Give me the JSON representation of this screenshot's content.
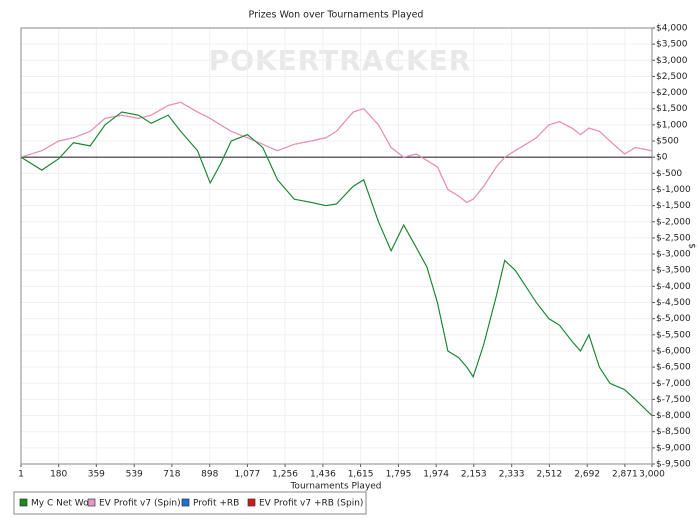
{
  "chart_data": {
    "type": "line",
    "title": "Prizes Won over Tournaments Played",
    "watermark": "POKERTRACKER",
    "x_label": "Tournaments Played",
    "y_label": "$",
    "x": [
      1,
      100,
      180,
      250,
      330,
      400,
      480,
      560,
      620,
      700,
      760,
      840,
      900,
      950,
      1000,
      1077,
      1150,
      1220,
      1300,
      1380,
      1450,
      1500,
      1580,
      1630,
      1700,
      1760,
      1820,
      1880,
      1930,
      1980,
      2030,
      2080,
      2120,
      2150,
      2200,
      2260,
      2300,
      2350,
      2400,
      2450,
      2510,
      2560,
      2620,
      2660,
      2700,
      2750,
      2800,
      2870,
      2920,
      3000
    ],
    "series": [
      {
        "name": "My C Net Won",
        "color": "#1a8a1a",
        "values": [
          0,
          -400,
          -50,
          450,
          350,
          1000,
          1400,
          1300,
          1050,
          1300,
          800,
          200,
          -800,
          -200,
          500,
          700,
          300,
          -700,
          -1300,
          -1400,
          -1500,
          -1450,
          -900,
          -700,
          -2000,
          -2900,
          -2100,
          -2800,
          -3400,
          -4500,
          -6000,
          -6200,
          -6500,
          -6800,
          -5800,
          -4300,
          -3200,
          -3500,
          -4000,
          -4500,
          -5000,
          -5200,
          -5700,
          -6000,
          -5500,
          -6500,
          -7000,
          -7200,
          -7500,
          -8000
        ]
      },
      {
        "name": "EV Profit v7 (Spin)",
        "color": "#e896c8",
        "values": [
          0,
          200,
          500,
          600,
          800,
          1200,
          1300,
          1200,
          1300,
          1600,
          1700,
          1400,
          1200,
          1000,
          800,
          600,
          400,
          200,
          400,
          500,
          600,
          800,
          1400,
          1500,
          1000,
          300,
          0,
          100,
          -100,
          -300,
          -1000,
          -1200,
          -1400,
          -1300,
          -900,
          -300,
          0,
          200,
          400,
          600,
          1000,
          1100,
          900,
          700,
          900,
          800,
          500,
          100,
          300,
          200
        ]
      },
      {
        "name": "Profit +RB",
        "color": "#1f6fd1",
        "values": [
          0,
          -400,
          -50,
          450,
          350,
          1000,
          1400,
          1300,
          1050,
          1300,
          800,
          200,
          -800,
          -200,
          500,
          700,
          300,
          -700,
          -1300,
          -1400,
          -1500,
          -1450,
          -900,
          -700,
          -2000,
          -2900,
          -2100,
          -2800,
          -3400,
          -4500,
          -6000,
          -6200,
          -6500,
          -6800,
          -5800,
          -4300,
          -3200,
          -3500,
          -4000,
          -4500,
          -5000,
          -5200,
          -5700,
          -6000,
          -5500,
          -6500,
          -7000,
          -7200,
          -7500,
          -8000
        ]
      },
      {
        "name": "EV Profit v7 +RB (Spin)",
        "color": "#d11a1a",
        "values": [
          0,
          200,
          500,
          600,
          800,
          1200,
          1300,
          1200,
          1300,
          1600,
          1700,
          1400,
          1200,
          1000,
          800,
          600,
          400,
          200,
          400,
          500,
          600,
          800,
          1400,
          1500,
          1000,
          300,
          0,
          100,
          -100,
          -300,
          -1000,
          -1200,
          -1400,
          -1300,
          -900,
          -300,
          0,
          200,
          400,
          600,
          1000,
          1100,
          900,
          700,
          900,
          800,
          500,
          100,
          300,
          200
        ]
      }
    ],
    "xlim": [
      1,
      3000
    ],
    "xticks": [
      1,
      180,
      359,
      539,
      718,
      898,
      {
        "value": 1077,
        "label": "1,077"
      },
      {
        "value": 1256,
        "label": "1,256"
      },
      {
        "value": 1436,
        "label": "1,436"
      },
      {
        "value": 1615,
        "label": "1,615"
      },
      {
        "value": 1795,
        "label": "1,795"
      },
      {
        "value": 1974,
        "label": "1,974"
      },
      {
        "value": 2153,
        "label": "2,153"
      },
      {
        "value": 2333,
        "label": "2,333"
      },
      {
        "value": 2512,
        "label": "2,512"
      },
      {
        "value": 2692,
        "label": "2,692"
      },
      {
        "value": 2871,
        "label": "2,871"
      },
      {
        "value": 3000,
        "label": "3,000"
      }
    ],
    "ylim": [
      -9500,
      4000
    ],
    "yticks": [
      {
        "value": 4000,
        "label": "$4,000"
      },
      {
        "value": 3500,
        "label": "$3,500"
      },
      {
        "value": 3000,
        "label": "$3,000"
      },
      {
        "value": 2500,
        "label": "$2,500"
      },
      {
        "value": 2000,
        "label": "$2,000"
      },
      {
        "value": 1500,
        "label": "$1,500"
      },
      {
        "value": 1000,
        "label": "$1,000"
      },
      {
        "value": 500,
        "label": "$500"
      },
      {
        "value": 0,
        "label": "$0"
      },
      {
        "value": -500,
        "label": "$-500"
      },
      {
        "value": -1000,
        "label": "$-1,000"
      },
      {
        "value": -1500,
        "label": "$-1,500"
      },
      {
        "value": -2000,
        "label": "$-2,000"
      },
      {
        "value": -2500,
        "label": "$-2,500"
      },
      {
        "value": -3000,
        "label": "$-3,000"
      },
      {
        "value": -3500,
        "label": "$-3,500"
      },
      {
        "value": -4000,
        "label": "$-4,000"
      },
      {
        "value": -4500,
        "label": "$-4,500"
      },
      {
        "value": -5000,
        "label": "$-5,000"
      },
      {
        "value": -5500,
        "label": "$-5,500"
      },
      {
        "value": -6000,
        "label": "$-6,000"
      },
      {
        "value": -6500,
        "label": "$-6,500"
      },
      {
        "value": -7000,
        "label": "$-7,000"
      },
      {
        "value": -7500,
        "label": "$-7,500"
      },
      {
        "value": -8000,
        "label": "$-8,000"
      },
      {
        "value": -8500,
        "label": "$-8,500"
      },
      {
        "value": -9000,
        "label": "$-9,000"
      },
      {
        "value": -9500,
        "label": "$-9,500"
      }
    ],
    "grid": true,
    "legend": "bottom-left"
  }
}
